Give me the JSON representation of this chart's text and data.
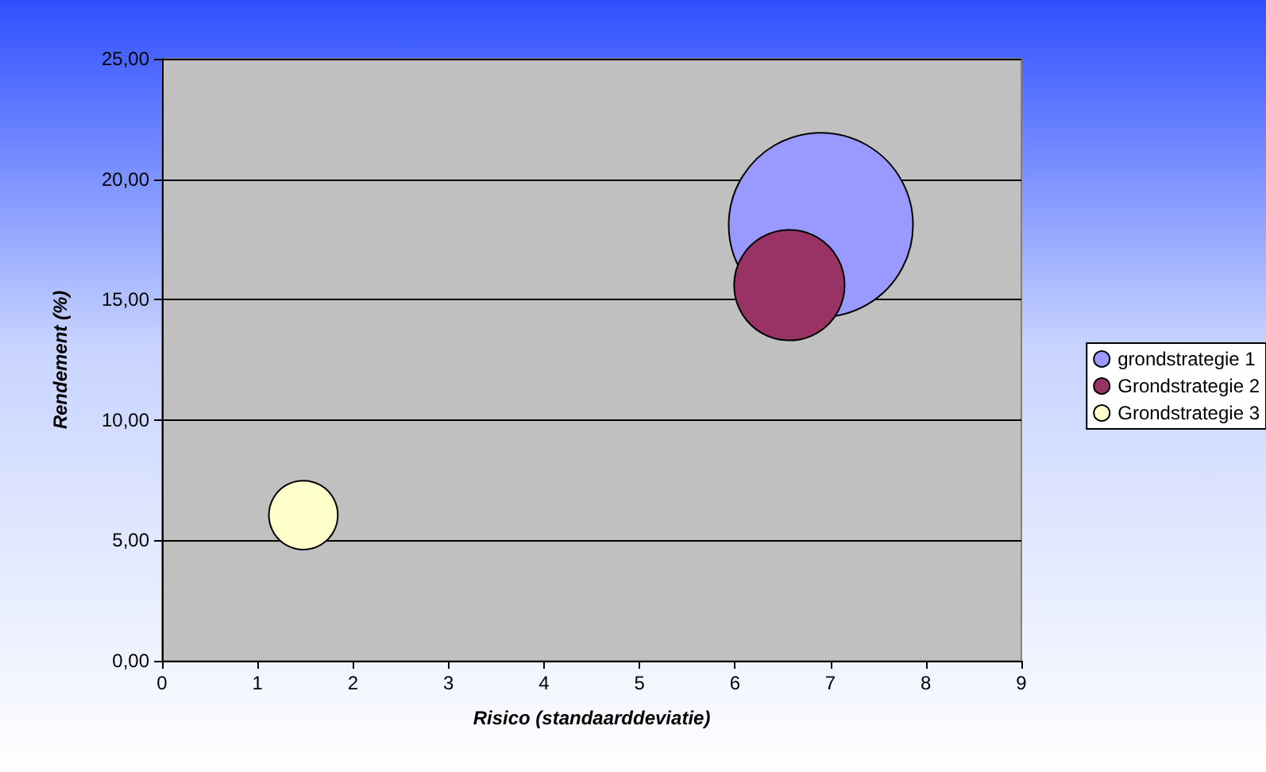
{
  "chart_data": {
    "type": "bubble",
    "xlabel": "Risico (standaarddeviatie)",
    "ylabel": "Rendement (%)",
    "xlim": [
      0,
      9
    ],
    "xticks": [
      0,
      1,
      2,
      3,
      4,
      5,
      6,
      7,
      8,
      9
    ],
    "ylim": [
      0,
      25
    ],
    "yticks": [
      {
        "value": 0,
        "label": "0,00"
      },
      {
        "value": 5,
        "label": "5,00"
      },
      {
        "value": 10,
        "label": "10,00"
      },
      {
        "value": 15,
        "label": "15,00"
      },
      {
        "value": 20,
        "label": "20,00"
      },
      {
        "value": 25,
        "label": "25,00"
      }
    ],
    "grid": "y",
    "legend": "right",
    "marker": "circle",
    "series": [
      {
        "name": "grondstrategie 1",
        "color": "#9999ff",
        "x": [
          6.9
        ],
        "values": [
          18.1
        ],
        "sizes": [
          1
        ]
      },
      {
        "name": "Grondstrategie 2",
        "color": "#993366",
        "x": [
          6.57
        ],
        "values": [
          15.6
        ],
        "sizes": [
          0.36
        ]
      },
      {
        "name": "Grondstrategie 3",
        "color": "#ffffcc",
        "x": [
          1.48
        ],
        "values": [
          6.05
        ],
        "sizes": [
          0.14
        ]
      }
    ]
  }
}
